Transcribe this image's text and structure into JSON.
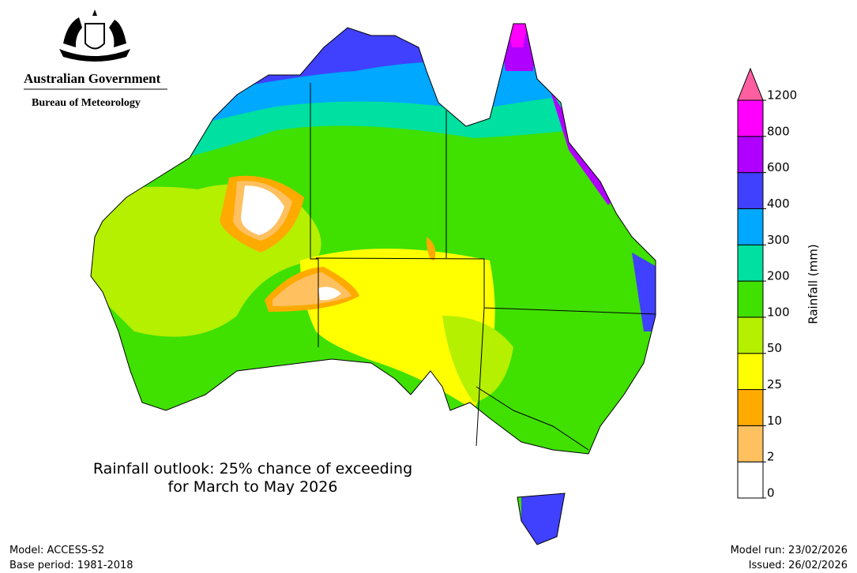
{
  "header": {
    "government": "Australian Government",
    "bureau": "Bureau of Meteorology"
  },
  "title": [
    "Rainfall outlook: 25% chance of exceeding",
    "for March to May 2026"
  ],
  "colorbar": {
    "label": "Rainfall (mm)",
    "ticks": [
      0,
      2,
      10,
      25,
      50,
      100,
      200,
      300,
      400,
      600,
      800,
      1200
    ],
    "colors": [
      "#ffffff",
      "#ffc060",
      "#ffaa00",
      "#ffff00",
      "#b4f000",
      "#40e000",
      "#00e0a0",
      "#00a8ff",
      "#4040ff",
      "#b000ff",
      "#ff00ff"
    ],
    "extend_color": "#ff5fa0"
  },
  "footer": {
    "model": "Model: ACCESS-S2",
    "base_period": "Base period: 1981-2018",
    "model_run": "Model run: 23/02/2026",
    "issued": "Issued: 26/02/2026"
  }
}
